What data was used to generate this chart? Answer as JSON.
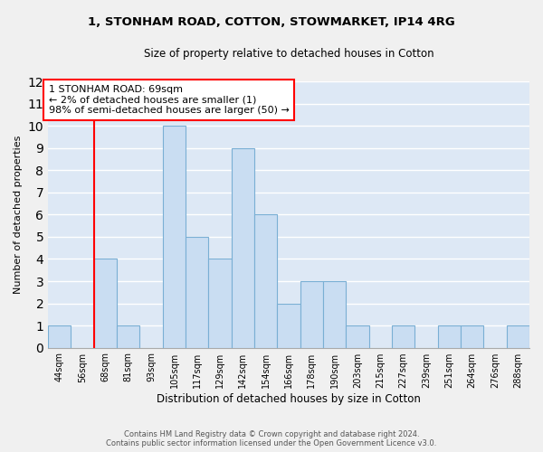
{
  "title": "1, STONHAM ROAD, COTTON, STOWMARKET, IP14 4RG",
  "subtitle": "Size of property relative to detached houses in Cotton",
  "xlabel": "Distribution of detached houses by size in Cotton",
  "ylabel": "Number of detached properties",
  "bin_labels": [
    "44sqm",
    "56sqm",
    "68sqm",
    "81sqm",
    "93sqm",
    "105sqm",
    "117sqm",
    "129sqm",
    "142sqm",
    "154sqm",
    "166sqm",
    "178sqm",
    "190sqm",
    "203sqm",
    "215sqm",
    "227sqm",
    "239sqm",
    "251sqm",
    "264sqm",
    "276sqm",
    "288sqm"
  ],
  "bar_heights": [
    1,
    0,
    4,
    1,
    0,
    10,
    5,
    4,
    9,
    6,
    2,
    3,
    3,
    1,
    0,
    1,
    0,
    1,
    1,
    0,
    1
  ],
  "bar_color": "#c9ddf2",
  "bar_edge_color": "#7aafd4",
  "ylim": [
    0,
    12
  ],
  "yticks": [
    0,
    1,
    2,
    3,
    4,
    5,
    6,
    7,
    8,
    9,
    10,
    11,
    12
  ],
  "property_line_label": "1 STONHAM ROAD: 69sqm",
  "annotation_line1": "← 2% of detached houses are smaller (1)",
  "annotation_line2": "98% of semi-detached houses are larger (50) →",
  "footer_line1": "Contains HM Land Registry data © Crown copyright and database right 2024.",
  "footer_line2": "Contains public sector information licensed under the Open Government Licence v3.0.",
  "grid_color": "#ffffff",
  "bg_color": "#dde8f5",
  "fig_bg_color": "#f0f0f0"
}
